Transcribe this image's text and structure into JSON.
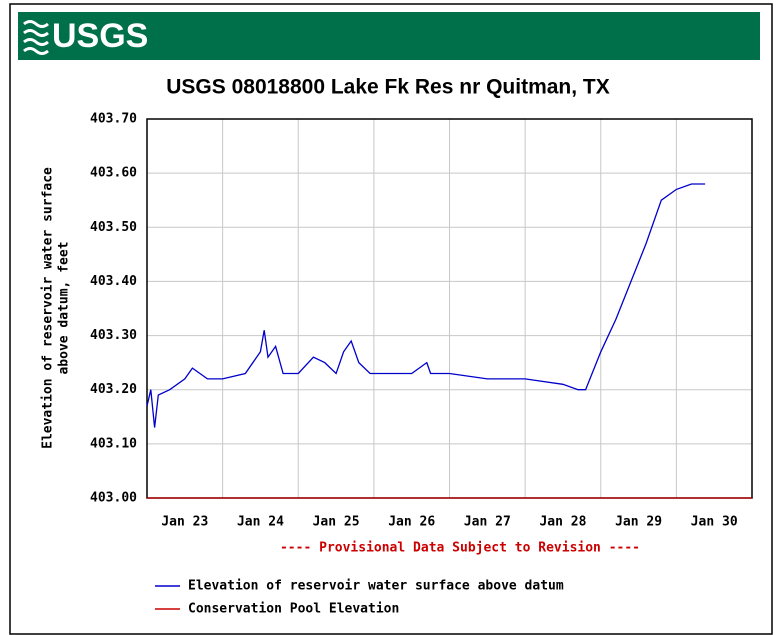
{
  "logo": "USGS",
  "chart_data": {
    "type": "line",
    "title": "USGS 08018800 Lake Fk Res nr Quitman, TX",
    "ylabel": [
      "Elevation of reservoir water surface",
      "above datum, feet"
    ],
    "annotation": "---- Provisional Data Subject to Revision ----",
    "xlim": [
      23.0,
      31.0
    ],
    "ylim": [
      403.0,
      403.7
    ],
    "xticks": [
      {
        "value": 23.5,
        "label": "Jan 23"
      },
      {
        "value": 24.5,
        "label": "Jan 24"
      },
      {
        "value": 25.5,
        "label": "Jan 25"
      },
      {
        "value": 26.5,
        "label": "Jan 26"
      },
      {
        "value": 27.5,
        "label": "Jan 27"
      },
      {
        "value": 28.5,
        "label": "Jan 28"
      },
      {
        "value": 29.5,
        "label": "Jan 29"
      },
      {
        "value": 30.5,
        "label": "Jan 30"
      }
    ],
    "xgrid": [
      24,
      25,
      26,
      27,
      28,
      29,
      30
    ],
    "yticks": [
      {
        "value": 403.0,
        "label": "403.00"
      },
      {
        "value": 403.1,
        "label": "403.10"
      },
      {
        "value": 403.2,
        "label": "403.20"
      },
      {
        "value": 403.3,
        "label": "403.30"
      },
      {
        "value": 403.4,
        "label": "403.40"
      },
      {
        "value": 403.5,
        "label": "403.50"
      },
      {
        "value": 403.6,
        "label": "403.60"
      },
      {
        "value": 403.7,
        "label": "403.70"
      }
    ],
    "grid": true,
    "series": [
      {
        "name": "Elevation of reservoir water surface above datum",
        "color": "#0000cc",
        "x": [
          23.0,
          23.05,
          23.1,
          23.15,
          23.3,
          23.5,
          23.6,
          23.8,
          24.0,
          24.3,
          24.5,
          24.55,
          24.6,
          24.7,
          24.8,
          25.0,
          25.2,
          25.35,
          25.5,
          25.6,
          25.7,
          25.8,
          25.95,
          26.5,
          26.7,
          26.75,
          27.0,
          27.5,
          28.0,
          28.5,
          28.7,
          28.8,
          29.0,
          29.2,
          29.4,
          29.6,
          29.8,
          30.0,
          30.2,
          30.38
        ],
        "values": [
          403.17,
          403.2,
          403.13,
          403.19,
          403.2,
          403.22,
          403.24,
          403.22,
          403.22,
          403.23,
          403.27,
          403.31,
          403.26,
          403.28,
          403.23,
          403.23,
          403.26,
          403.25,
          403.23,
          403.27,
          403.29,
          403.25,
          403.23,
          403.23,
          403.25,
          403.23,
          403.23,
          403.22,
          403.22,
          403.21,
          403.2,
          403.2,
          403.27,
          403.33,
          403.4,
          403.47,
          403.55,
          403.57,
          403.58,
          403.58
        ]
      },
      {
        "name": "Conservation Pool Elevation",
        "color": "#cc0000",
        "x": [
          23.0,
          31.0
        ],
        "values": [
          403.0,
          403.0
        ]
      }
    ]
  }
}
